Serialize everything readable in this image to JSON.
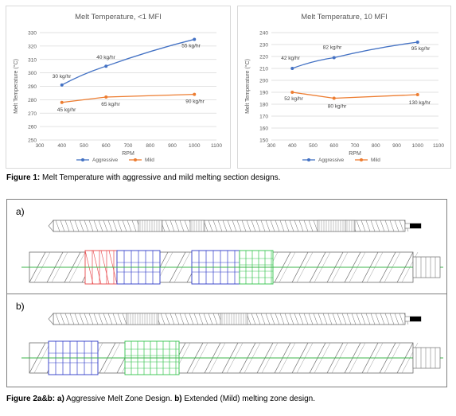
{
  "chart_data": [
    {
      "type": "line",
      "title": "Melt Temperature, <1 MFI",
      "xlabel": "RPM",
      "ylabel": "Melt Temperature (°C)",
      "xlim": [
        300,
        1100
      ],
      "xticks": [
        300,
        400,
        500,
        600,
        700,
        800,
        900,
        1000,
        1100
      ],
      "ylim": [
        250,
        330
      ],
      "yticks": [
        250,
        260,
        270,
        280,
        290,
        300,
        310,
        320,
        330
      ],
      "grid": true,
      "legend_position": "bottom",
      "series": [
        {
          "name": "Aggressive",
          "color": "#4472c4",
          "x": [
            400,
            600,
            1000
          ],
          "y": [
            291,
            305,
            325
          ],
          "labels": [
            "30 kg/hr",
            "40 kg/hr",
            "55 kg/hr"
          ]
        },
        {
          "name": "Mild",
          "color": "#ed7d31",
          "x": [
            400,
            600,
            1000
          ],
          "y": [
            278,
            282,
            284
          ],
          "labels": [
            "45 kg/hr",
            "65 kg/hr",
            "90 kg/hr"
          ]
        }
      ]
    },
    {
      "type": "line",
      "title": "Melt Temperature, 10 MFI",
      "xlabel": "RPM",
      "ylabel": "Melt Temperature (°C)",
      "xlim": [
        300,
        1100
      ],
      "xticks": [
        300,
        400,
        500,
        600,
        700,
        800,
        900,
        1000,
        1100
      ],
      "ylim": [
        150,
        240
      ],
      "yticks": [
        150,
        160,
        170,
        180,
        190,
        200,
        210,
        220,
        230,
        240
      ],
      "grid": true,
      "legend_position": "bottom",
      "series": [
        {
          "name": "Aggressive",
          "color": "#4472c4",
          "x": [
            400,
            600,
            1000
          ],
          "y": [
            210,
            219,
            232
          ],
          "labels": [
            "42 kg/hr",
            "82 kg/hr",
            "95 kg/hr"
          ]
        },
        {
          "name": "Mild",
          "color": "#ed7d31",
          "x": [
            400,
            600,
            1000
          ],
          "y": [
            190,
            185,
            188
          ],
          "labels": [
            "52 kg/hr",
            "80 kg/hr",
            "130 kg/hr"
          ]
        }
      ]
    }
  ],
  "figure1": {
    "label": "Figure 1:",
    "text": " Melt Temperature with aggressive and mild melting section designs."
  },
  "panels": [
    {
      "label": "a)"
    },
    {
      "label": "b)"
    }
  ],
  "figure2": {
    "label": "Figure 2a&b:",
    "part_a_label": " a)",
    "part_a_text": " Aggressive Melt Zone Design. ",
    "part_b_label": "b)",
    "part_b_text": " Extended (Mild) melting zone design."
  },
  "colors": {
    "screw_outline": "#6d6d6d",
    "centerline": "#3cb44b",
    "aggressive_kneading": "#2e3ac8",
    "reverse_kneading": "#e8474a",
    "mixing_zone": "#33c24d",
    "screw_end": "#000000"
  }
}
